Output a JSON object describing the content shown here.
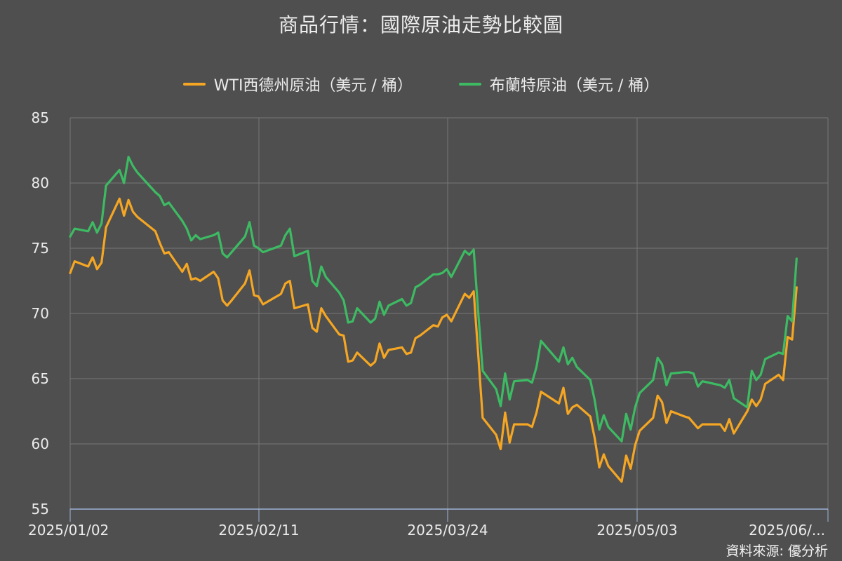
{
  "title": "商品行情：國際原油走勢比較圖",
  "source": "資料來源: 優分析",
  "colors": {
    "background": "#4f4f4f",
    "grid": "#777777",
    "axis_line": "#9fb4d8",
    "text": "#ececec"
  },
  "chart_data": {
    "type": "line",
    "title": "商品行情：國際原油走勢比較圖",
    "xlabel": "",
    "ylabel": "",
    "ylim": [
      55,
      85
    ],
    "yticks": [
      55,
      60,
      65,
      70,
      75,
      80,
      85
    ],
    "xtick_labels": [
      "2025/01/02",
      "2025/02/11",
      "2025/03/24",
      "2025/05/03",
      "2025/06/..."
    ],
    "xlim": [
      "2025-01-02",
      "2025-06-20"
    ],
    "grid": true,
    "legend_position": "top-center",
    "series": [
      {
        "name": "WTI西德州原油（美元 / 桶）",
        "color": "#f5a623",
        "points": [
          [
            "2025-01-02",
            73.1
          ],
          [
            "2025-01-03",
            74.0
          ],
          [
            "2025-01-06",
            73.6
          ],
          [
            "2025-01-07",
            74.3
          ],
          [
            "2025-01-08",
            73.4
          ],
          [
            "2025-01-09",
            73.9
          ],
          [
            "2025-01-10",
            76.6
          ],
          [
            "2025-01-13",
            78.8
          ],
          [
            "2025-01-14",
            77.5
          ],
          [
            "2025-01-15",
            78.7
          ],
          [
            "2025-01-16",
            77.8
          ],
          [
            "2025-01-17",
            77.4
          ],
          [
            "2025-01-21",
            76.3
          ],
          [
            "2025-01-22",
            75.4
          ],
          [
            "2025-01-23",
            74.6
          ],
          [
            "2025-01-24",
            74.7
          ],
          [
            "2025-01-27",
            73.2
          ],
          [
            "2025-01-28",
            73.8
          ],
          [
            "2025-01-29",
            72.6
          ],
          [
            "2025-01-30",
            72.7
          ],
          [
            "2025-01-31",
            72.5
          ],
          [
            "2025-02-03",
            73.2
          ],
          [
            "2025-02-04",
            72.7
          ],
          [
            "2025-02-05",
            71.0
          ],
          [
            "2025-02-06",
            70.6
          ],
          [
            "2025-02-07",
            71.0
          ],
          [
            "2025-02-10",
            72.3
          ],
          [
            "2025-02-11",
            73.3
          ],
          [
            "2025-02-12",
            71.4
          ],
          [
            "2025-02-13",
            71.3
          ],
          [
            "2025-02-14",
            70.7
          ],
          [
            "2025-02-18",
            71.5
          ],
          [
            "2025-02-19",
            72.3
          ],
          [
            "2025-02-20",
            72.5
          ],
          [
            "2025-02-21",
            70.4
          ],
          [
            "2025-02-24",
            70.7
          ],
          [
            "2025-02-25",
            68.9
          ],
          [
            "2025-02-26",
            68.6
          ],
          [
            "2025-02-27",
            70.4
          ],
          [
            "2025-02-28",
            69.8
          ],
          [
            "2025-03-03",
            68.4
          ],
          [
            "2025-03-04",
            68.3
          ],
          [
            "2025-03-05",
            66.3
          ],
          [
            "2025-03-06",
            66.4
          ],
          [
            "2025-03-07",
            67.0
          ],
          [
            "2025-03-10",
            66.0
          ],
          [
            "2025-03-11",
            66.3
          ],
          [
            "2025-03-12",
            67.7
          ],
          [
            "2025-03-13",
            66.6
          ],
          [
            "2025-03-14",
            67.2
          ],
          [
            "2025-03-17",
            67.4
          ],
          [
            "2025-03-18",
            66.9
          ],
          [
            "2025-03-19",
            67.0
          ],
          [
            "2025-03-20",
            68.1
          ],
          [
            "2025-03-21",
            68.3
          ],
          [
            "2025-03-24",
            69.1
          ],
          [
            "2025-03-25",
            69.0
          ],
          [
            "2025-03-26",
            69.7
          ],
          [
            "2025-03-27",
            69.9
          ],
          [
            "2025-03-28",
            69.4
          ],
          [
            "2025-03-31",
            71.5
          ],
          [
            "2025-04-01",
            71.2
          ],
          [
            "2025-04-02",
            71.7
          ],
          [
            "2025-04-03",
            66.9
          ],
          [
            "2025-04-04",
            62.0
          ],
          [
            "2025-04-07",
            60.7
          ],
          [
            "2025-04-08",
            59.6
          ],
          [
            "2025-04-09",
            62.4
          ],
          [
            "2025-04-10",
            60.1
          ],
          [
            "2025-04-11",
            61.5
          ],
          [
            "2025-04-14",
            61.5
          ],
          [
            "2025-04-15",
            61.3
          ],
          [
            "2025-04-16",
            62.4
          ],
          [
            "2025-04-17",
            64.0
          ],
          [
            "2025-04-21",
            63.1
          ],
          [
            "2025-04-22",
            64.3
          ],
          [
            "2025-04-23",
            62.3
          ],
          [
            "2025-04-24",
            62.8
          ],
          [
            "2025-04-25",
            63.0
          ],
          [
            "2025-04-28",
            62.1
          ],
          [
            "2025-04-29",
            60.4
          ],
          [
            "2025-04-30",
            58.2
          ],
          [
            "2025-05-01",
            59.2
          ],
          [
            "2025-05-02",
            58.3
          ],
          [
            "2025-05-05",
            57.1
          ],
          [
            "2025-05-06",
            59.1
          ],
          [
            "2025-05-07",
            58.1
          ],
          [
            "2025-05-08",
            59.9
          ],
          [
            "2025-05-09",
            61.0
          ],
          [
            "2025-05-12",
            62.0
          ],
          [
            "2025-05-13",
            63.7
          ],
          [
            "2025-05-14",
            63.2
          ],
          [
            "2025-05-15",
            61.6
          ],
          [
            "2025-05-16",
            62.5
          ],
          [
            "2025-05-19",
            62.1
          ],
          [
            "2025-05-20",
            62.0
          ],
          [
            "2025-05-21",
            61.6
          ],
          [
            "2025-05-22",
            61.2
          ],
          [
            "2025-05-23",
            61.5
          ],
          [
            "2025-05-27",
            61.5
          ],
          [
            "2025-05-28",
            61.0
          ],
          [
            "2025-05-29",
            61.9
          ],
          [
            "2025-05-30",
            60.8
          ],
          [
            "2025-06-02",
            62.5
          ],
          [
            "2025-06-03",
            63.4
          ],
          [
            "2025-06-04",
            62.9
          ],
          [
            "2025-06-05",
            63.4
          ],
          [
            "2025-06-06",
            64.6
          ],
          [
            "2025-06-09",
            65.3
          ],
          [
            "2025-06-10",
            64.9
          ],
          [
            "2025-06-11",
            68.2
          ],
          [
            "2025-06-12",
            68.0
          ],
          [
            "2025-06-13",
            72.0
          ]
        ]
      },
      {
        "name": "布蘭特原油（美元 / 桶）",
        "color": "#3dbb63",
        "points": [
          [
            "2025-01-02",
            75.9
          ],
          [
            "2025-01-03",
            76.5
          ],
          [
            "2025-01-06",
            76.3
          ],
          [
            "2025-01-07",
            77.0
          ],
          [
            "2025-01-08",
            76.2
          ],
          [
            "2025-01-09",
            76.9
          ],
          [
            "2025-01-10",
            79.8
          ],
          [
            "2025-01-13",
            81.0
          ],
          [
            "2025-01-14",
            80.0
          ],
          [
            "2025-01-15",
            82.0
          ],
          [
            "2025-01-16",
            81.3
          ],
          [
            "2025-01-17",
            80.8
          ],
          [
            "2025-01-21",
            79.3
          ],
          [
            "2025-01-22",
            79.0
          ],
          [
            "2025-01-23",
            78.3
          ],
          [
            "2025-01-24",
            78.5
          ],
          [
            "2025-01-27",
            77.1
          ],
          [
            "2025-01-28",
            76.5
          ],
          [
            "2025-01-29",
            75.6
          ],
          [
            "2025-01-30",
            76.0
          ],
          [
            "2025-01-31",
            75.7
          ],
          [
            "2025-02-03",
            76.0
          ],
          [
            "2025-02-04",
            76.2
          ],
          [
            "2025-02-05",
            74.6
          ],
          [
            "2025-02-06",
            74.3
          ],
          [
            "2025-02-07",
            74.7
          ],
          [
            "2025-02-10",
            75.9
          ],
          [
            "2025-02-11",
            77.0
          ],
          [
            "2025-02-12",
            75.2
          ],
          [
            "2025-02-13",
            75.0
          ],
          [
            "2025-02-14",
            74.7
          ],
          [
            "2025-02-18",
            75.2
          ],
          [
            "2025-02-19",
            76.0
          ],
          [
            "2025-02-20",
            76.5
          ],
          [
            "2025-02-21",
            74.4
          ],
          [
            "2025-02-24",
            74.8
          ],
          [
            "2025-02-25",
            72.5
          ],
          [
            "2025-02-26",
            72.1
          ],
          [
            "2025-02-27",
            73.6
          ],
          [
            "2025-02-28",
            72.8
          ],
          [
            "2025-03-03",
            71.6
          ],
          [
            "2025-03-04",
            71.0
          ],
          [
            "2025-03-05",
            69.3
          ],
          [
            "2025-03-06",
            69.4
          ],
          [
            "2025-03-07",
            70.4
          ],
          [
            "2025-03-10",
            69.3
          ],
          [
            "2025-03-11",
            69.6
          ],
          [
            "2025-03-12",
            70.9
          ],
          [
            "2025-03-13",
            69.9
          ],
          [
            "2025-03-14",
            70.6
          ],
          [
            "2025-03-17",
            71.1
          ],
          [
            "2025-03-18",
            70.6
          ],
          [
            "2025-03-19",
            70.8
          ],
          [
            "2025-03-20",
            72.0
          ],
          [
            "2025-03-21",
            72.2
          ],
          [
            "2025-03-24",
            73.0
          ],
          [
            "2025-03-25",
            73.0
          ],
          [
            "2025-03-26",
            73.1
          ],
          [
            "2025-03-27",
            73.4
          ],
          [
            "2025-03-28",
            72.8
          ],
          [
            "2025-03-31",
            74.8
          ],
          [
            "2025-04-01",
            74.5
          ],
          [
            "2025-04-02",
            74.9
          ],
          [
            "2025-04-03",
            70.1
          ],
          [
            "2025-04-04",
            65.6
          ],
          [
            "2025-04-07",
            64.2
          ],
          [
            "2025-04-08",
            62.9
          ],
          [
            "2025-04-09",
            65.4
          ],
          [
            "2025-04-10",
            63.4
          ],
          [
            "2025-04-11",
            64.8
          ],
          [
            "2025-04-14",
            64.9
          ],
          [
            "2025-04-15",
            64.7
          ],
          [
            "2025-04-16",
            65.9
          ],
          [
            "2025-04-17",
            67.9
          ],
          [
            "2025-04-21",
            66.3
          ],
          [
            "2025-04-22",
            67.4
          ],
          [
            "2025-04-23",
            66.1
          ],
          [
            "2025-04-24",
            66.6
          ],
          [
            "2025-04-25",
            65.9
          ],
          [
            "2025-04-28",
            64.9
          ],
          [
            "2025-04-29",
            63.3
          ],
          [
            "2025-04-30",
            61.1
          ],
          [
            "2025-05-01",
            62.2
          ],
          [
            "2025-05-02",
            61.3
          ],
          [
            "2025-05-05",
            60.2
          ],
          [
            "2025-05-06",
            62.3
          ],
          [
            "2025-05-07",
            61.1
          ],
          [
            "2025-05-08",
            62.8
          ],
          [
            "2025-05-09",
            63.9
          ],
          [
            "2025-05-12",
            64.9
          ],
          [
            "2025-05-13",
            66.6
          ],
          [
            "2025-05-14",
            66.1
          ],
          [
            "2025-05-15",
            64.5
          ],
          [
            "2025-05-16",
            65.4
          ],
          [
            "2025-05-19",
            65.5
          ],
          [
            "2025-05-20",
            65.5
          ],
          [
            "2025-05-21",
            65.4
          ],
          [
            "2025-05-22",
            64.4
          ],
          [
            "2025-05-23",
            64.8
          ],
          [
            "2025-05-27",
            64.5
          ],
          [
            "2025-05-28",
            64.3
          ],
          [
            "2025-05-29",
            64.9
          ],
          [
            "2025-05-30",
            63.5
          ],
          [
            "2025-06-02",
            62.8
          ],
          [
            "2025-06-03",
            65.6
          ],
          [
            "2025-06-04",
            64.9
          ],
          [
            "2025-06-05",
            65.3
          ],
          [
            "2025-06-06",
            66.5
          ],
          [
            "2025-06-09",
            67.0
          ],
          [
            "2025-06-10",
            66.9
          ],
          [
            "2025-06-11",
            69.8
          ],
          [
            "2025-06-12",
            69.4
          ],
          [
            "2025-06-13",
            74.2
          ]
        ]
      }
    ]
  }
}
